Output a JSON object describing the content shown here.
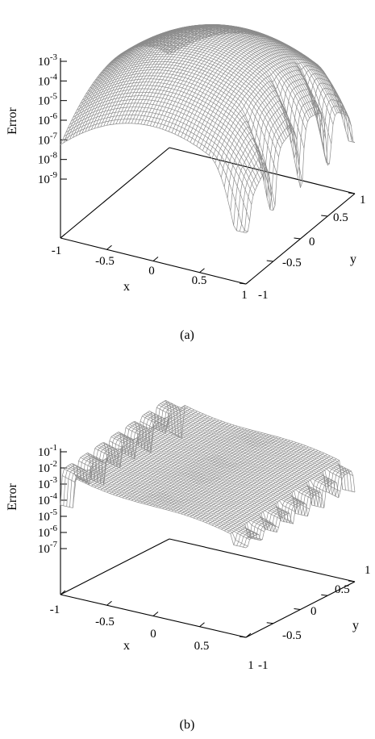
{
  "chart_data": [
    {
      "type": "surface",
      "caption": "(a)",
      "xlabel": "x",
      "ylabel": "y",
      "zlabel": "Error",
      "xlim": [
        -1,
        1
      ],
      "ylim": [
        -1,
        1
      ],
      "zscale": "log",
      "zlim_exponents": [
        -10,
        -3
      ],
      "x_ticks": [
        "-1",
        "-0.5",
        "0",
        "0.5",
        "1"
      ],
      "y_ticks": [
        "-1",
        "-0.5",
        "0",
        "0.5",
        "1"
      ],
      "z_ticks": [
        {
          "base": "10",
          "exp": "-9"
        },
        {
          "base": "10",
          "exp": "-8"
        },
        {
          "base": "10",
          "exp": "-7"
        },
        {
          "base": "10",
          "exp": "-6"
        },
        {
          "base": "10",
          "exp": "-5"
        },
        {
          "base": "10",
          "exp": "-4"
        },
        {
          "base": "10",
          "exp": "-3"
        }
      ],
      "surface_color": "#8c8c8c",
      "surface_shape": "smooth dome peaking near 1e-3 at the center, dropping to ~1e-5 on the x=-1 and y=1 edges, with sharp spikes toward 1e-9 along the x=1 edge"
    },
    {
      "type": "surface",
      "caption": "(b)",
      "xlabel": "x",
      "ylabel": "y",
      "zlabel": "Error",
      "xlim": [
        -1,
        1
      ],
      "ylim": [
        -1,
        1
      ],
      "zscale": "log",
      "zlim_exponents": [
        -8,
        -1
      ],
      "x_ticks": [
        "-1",
        "-0.5",
        "0",
        "0.5",
        "1"
      ],
      "y_ticks": [
        "-1",
        "-0.5",
        "0",
        "0.5",
        "1"
      ],
      "z_ticks": [
        {
          "base": "10",
          "exp": "-7"
        },
        {
          "base": "10",
          "exp": "-6"
        },
        {
          "base": "10",
          "exp": "-5"
        },
        {
          "base": "10",
          "exp": "-4"
        },
        {
          "base": "10",
          "exp": "-3"
        },
        {
          "base": "10",
          "exp": "-2"
        },
        {
          "base": "10",
          "exp": "-1"
        }
      ],
      "surface_color": "#8c8c8c",
      "surface_shape": "error peaks near 1e-1 at the far corner (x=-1, y=1), decreasing toward ~1e-3 at x=1, with oscillating spikes along the x=-1 and x=1 edges"
    }
  ]
}
